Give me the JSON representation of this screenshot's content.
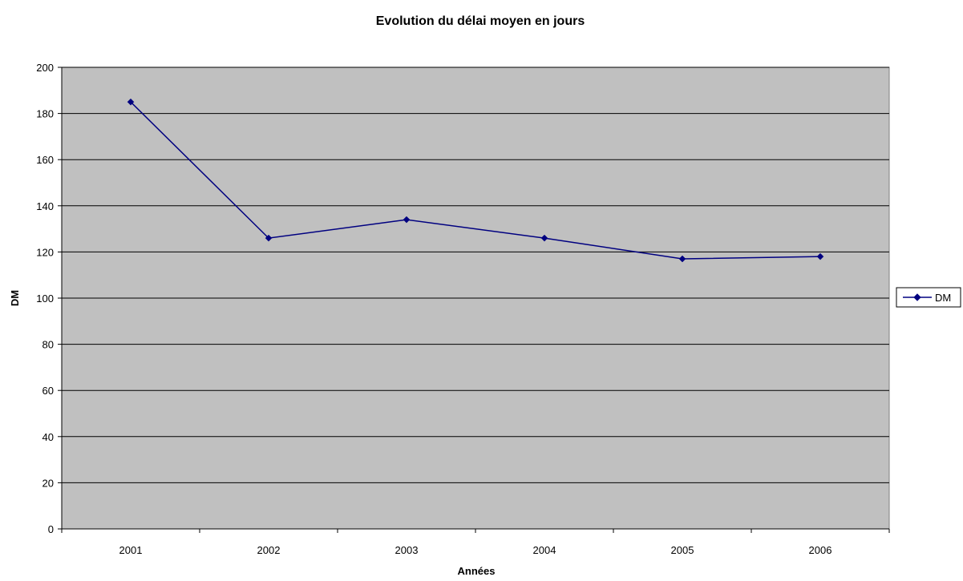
{
  "chart_data": {
    "type": "line",
    "title": "Evolution du délai moyen en jours",
    "xlabel": "Années",
    "ylabel": "DM",
    "categories": [
      "2001",
      "2002",
      "2003",
      "2004",
      "2005",
      "2006"
    ],
    "series": [
      {
        "name": "DM",
        "values": [
          185,
          126,
          134,
          126,
          117,
          118
        ]
      }
    ],
    "ylim": [
      0,
      200
    ],
    "yticks": [
      0,
      20,
      40,
      60,
      80,
      100,
      120,
      140,
      160,
      180,
      200
    ],
    "grid": true,
    "legend_position": "right",
    "colors": {
      "plot_background": "#c0c0c0",
      "gridline": "#000000",
      "series": "#000080"
    }
  }
}
